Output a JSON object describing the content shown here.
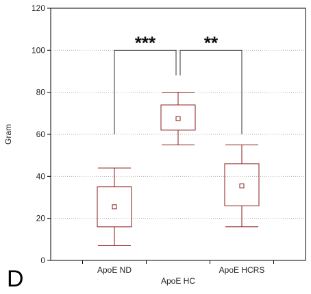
{
  "panel_label": "D",
  "colors": {
    "box": "#8b1a1a",
    "bracket": "#333333",
    "grid": "#b0b0b0",
    "axis": "#000000"
  },
  "chart_data": {
    "type": "box",
    "title": "",
    "xlabel": "ApoE HC",
    "ylabel": "Gram",
    "ylim": [
      0,
      120
    ],
    "yticks": [
      0,
      20,
      40,
      60,
      80,
      100,
      120
    ],
    "grid": "horizontal dotted",
    "groups": [
      {
        "label": "ApoE ND",
        "position": 1,
        "min": 7,
        "q1": 16,
        "mean": 25.5,
        "q3": 35,
        "max": 44
      },
      {
        "label": "",
        "position": 2,
        "min": 55,
        "q1": 62,
        "mean": 67.5,
        "q3": 74,
        "max": 80
      },
      {
        "label": "ApoE HCRS",
        "position": 3,
        "min": 16,
        "q1": 26,
        "mean": 35.5,
        "q3": 46,
        "max": 55
      }
    ],
    "xlim": [
      0,
      4
    ],
    "xticks": [
      0.5,
      1.5,
      2.5,
      3.5
    ],
    "significance": [
      {
        "from": 1,
        "to": 2,
        "label": "***",
        "height": 100,
        "base_left": 60,
        "base_right": 88
      },
      {
        "from": 2,
        "to": 3,
        "label": "**",
        "height": 100,
        "base_left": 88,
        "base_right": 60
      }
    ]
  }
}
